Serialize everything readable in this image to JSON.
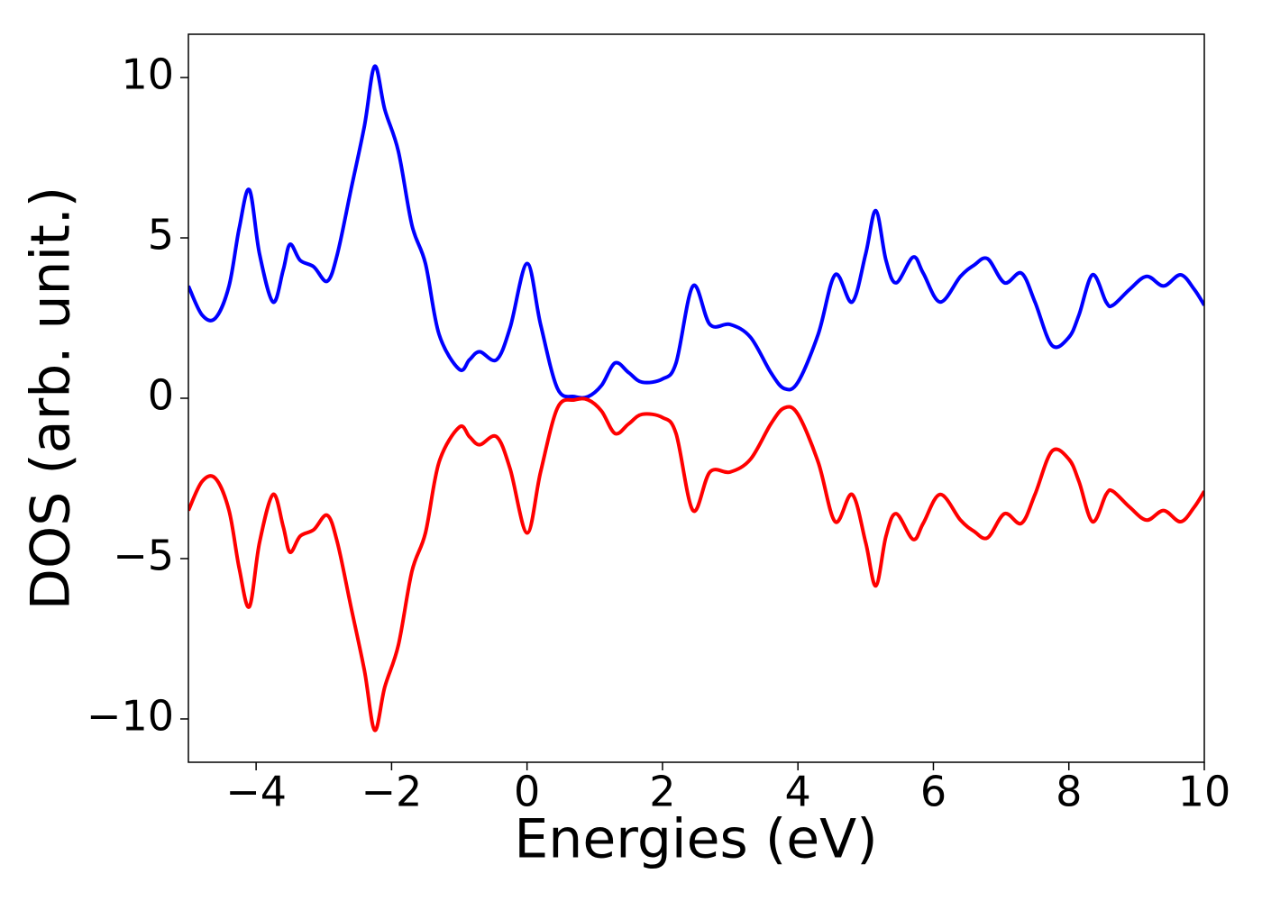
{
  "chart_data": {
    "type": "line",
    "xlabel": "Energies (eV)",
    "ylabel": "DOS (arb. unit.)",
    "x": [
      -5,
      -4.8,
      -4.6,
      -4.4,
      -4.25,
      -4.1,
      -3.95,
      -3.75,
      -3.6,
      -3.5,
      -3.35,
      -3.15,
      -2.95,
      -2.8,
      -2.6,
      -2.4,
      -2.25,
      -2.1,
      -1.9,
      -1.7,
      -1.5,
      -1.3,
      -1.0,
      -0.85,
      -0.7,
      -0.45,
      -0.25,
      0.0,
      0.2,
      0.45,
      0.7,
      0.9,
      1.1,
      1.3,
      1.5,
      1.7,
      2.0,
      2.2,
      2.45,
      2.7,
      3.0,
      3.3,
      3.6,
      3.8,
      4.0,
      4.3,
      4.55,
      4.8,
      5.0,
      5.15,
      5.3,
      5.45,
      5.7,
      5.85,
      6.1,
      6.4,
      6.6,
      6.8,
      7.05,
      7.3,
      7.5,
      7.75,
      8.0,
      8.15,
      8.35,
      8.55,
      8.65,
      8.9,
      9.15,
      9.4,
      9.65,
      9.85,
      10
    ],
    "series": [
      {
        "color": "#0000ff",
        "values": [
          3.5,
          2.6,
          2.5,
          3.5,
          5.3,
          6.5,
          4.5,
          3.0,
          4.0,
          4.8,
          4.3,
          4.1,
          3.65,
          4.5,
          6.5,
          8.5,
          10.35,
          9.0,
          7.7,
          5.4,
          4.2,
          2.0,
          0.9,
          1.2,
          1.45,
          1.2,
          2.2,
          4.2,
          2.3,
          0.3,
          0.05,
          0.05,
          0.4,
          1.1,
          0.8,
          0.5,
          0.6,
          1.1,
          3.5,
          2.3,
          2.3,
          1.9,
          0.8,
          0.3,
          0.5,
          2.0,
          3.85,
          3.0,
          4.5,
          5.85,
          4.3,
          3.6,
          4.4,
          3.9,
          3.0,
          3.8,
          4.15,
          4.35,
          3.6,
          3.9,
          3.0,
          1.65,
          1.9,
          2.6,
          3.85,
          3.0,
          2.9,
          3.4,
          3.8,
          3.5,
          3.85,
          3.4,
          2.9
        ]
      },
      {
        "color": "#ff0000",
        "values": [
          -3.5,
          -2.6,
          -2.5,
          -3.5,
          -5.3,
          -6.5,
          -4.5,
          -3.0,
          -4.0,
          -4.8,
          -4.3,
          -4.1,
          -3.65,
          -4.5,
          -6.5,
          -8.5,
          -10.35,
          -9.0,
          -7.7,
          -5.4,
          -4.2,
          -2.0,
          -0.9,
          -1.2,
          -1.45,
          -1.2,
          -2.2,
          -4.2,
          -2.3,
          -0.3,
          -0.05,
          -0.05,
          -0.4,
          -1.1,
          -0.8,
          -0.5,
          -0.6,
          -1.1,
          -3.5,
          -2.3,
          -2.3,
          -1.9,
          -0.8,
          -0.3,
          -0.5,
          -2.0,
          -3.85,
          -3.0,
          -4.5,
          -5.85,
          -4.3,
          -3.6,
          -4.4,
          -3.9,
          -3.0,
          -3.8,
          -4.15,
          -4.35,
          -3.6,
          -3.9,
          -3.0,
          -1.65,
          -1.9,
          -2.6,
          -3.85,
          -3.0,
          -2.9,
          -3.4,
          -3.8,
          -3.5,
          -3.85,
          -3.4,
          -2.9
        ]
      }
    ],
    "xlim": [
      -5,
      10
    ],
    "xticks": [
      {
        "value": -4,
        "label": "−4"
      },
      {
        "value": -2,
        "label": "−2"
      },
      0,
      2,
      4,
      6,
      8,
      10
    ],
    "ylim": [
      -11.35,
      11.35
    ],
    "yticks": [
      {
        "value": -10,
        "label": "−10"
      },
      {
        "value": -5,
        "label": "−5"
      },
      0,
      5,
      10
    ]
  }
}
